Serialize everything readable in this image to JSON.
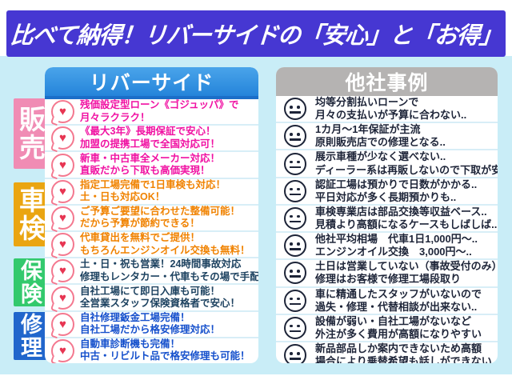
{
  "banner": {
    "title": "比べて納得！リバーサイドの「安心」と「お得」"
  },
  "left_panel": {
    "header": "リバーサイド"
  },
  "right_panel": {
    "header": "他社事例"
  },
  "categories": {
    "sales": {
      "label": "販売",
      "color": "#f08cb4"
    },
    "inspection": {
      "label": "車検",
      "color": "#eaa511"
    },
    "insurance": {
      "label": "保険",
      "color": "#33c96d"
    },
    "repair": {
      "label": "修理",
      "color": "#2166cc"
    }
  },
  "colors": {
    "banner_bg": "#4637d2",
    "backdrop": "#c9edf7",
    "left_header_bg": "#3092de",
    "right_header_bg": "#b5b3b2",
    "sales_text": "#f011a2",
    "inspection_text": "#f08200",
    "insurance_text": "#1d4260",
    "repair_text": "#1550cc",
    "competitor_text": "#1d2438",
    "heart": "#e73552"
  },
  "icons": {
    "left": "heart-speech-icon",
    "right": "neutral-face-icon",
    "heart_glyph": "♥"
  },
  "rows": [
    {
      "left1": "残価設定型ローン《ゴジュッパ》で",
      "left2": "月々ラクラク！",
      "right1": "均等分割払いローンで",
      "right2": "月々の支払いが予算に合わない.."
    },
    {
      "left1": "《最大3年》長期保証で安心！",
      "left2": "加盟の提携工場で全国対応可！",
      "right1": "1カ月～1年保証が主流",
      "right2": "原則販売店での修理となる.."
    },
    {
      "left1": "新車・中古車全メーカー対応！",
      "left2": "直販だから下取も高価実現！",
      "right1": "展示車種が少なく選べない..",
      "right2": "ディーラー系は再販しないので下取が安い.."
    },
    {
      "left1": "指定工場完備で1日車検も対応！",
      "left2": "土・日も対応OK！",
      "right1": "認証工場は預かりで日数がかかる..",
      "right2": "平日対応が多く長期預かりも.."
    },
    {
      "left1": "ご予算ご要望に合わせた整備可能！",
      "left2": "だから予算が節約できる！",
      "right1": "車検専業店は部品交換等収益ベース..",
      "right2": "見積より高額になるケースもしばしば.."
    },
    {
      "left1": "代車貸出を無料でご提供！",
      "left2": "もちろんエンジンオイル交換も無料！",
      "right1": "他社平均相場　代車1日1,000円～..",
      "right2": "エンジンオイル交換　3,000円～.."
    },
    {
      "left1": "土・日・祝も営業！24時間事故対応",
      "left2": "修理もレンタカー・代車もその場で手配！",
      "right1": "土日は営業していない（事故受付のみ）",
      "right2": "修理はお客様で修理工場段取り"
    },
    {
      "left1": "自社工場にて即日入庫も可能！",
      "left2": "全営業スタッフ保険資格者で安心！",
      "right1": "車に精通したスタッフがいないので",
      "right2": "過失・修理・代替相談が出来ない.."
    },
    {
      "left1": "自社修理鈑金工場完備！",
      "left2": "自社工場だから格安修理対応！",
      "right1": "設備が弱い・自社工場がないなど",
      "right2": "外注が多く費用が高額になりやすい"
    },
    {
      "left1": "自動車診断機も完備！",
      "left2": "中古・リビルト品で格安修理も可能！",
      "right1": "新品部品しか案内できないため高額",
      "right2": "場合により乗替希望も話しができない"
    }
  ]
}
